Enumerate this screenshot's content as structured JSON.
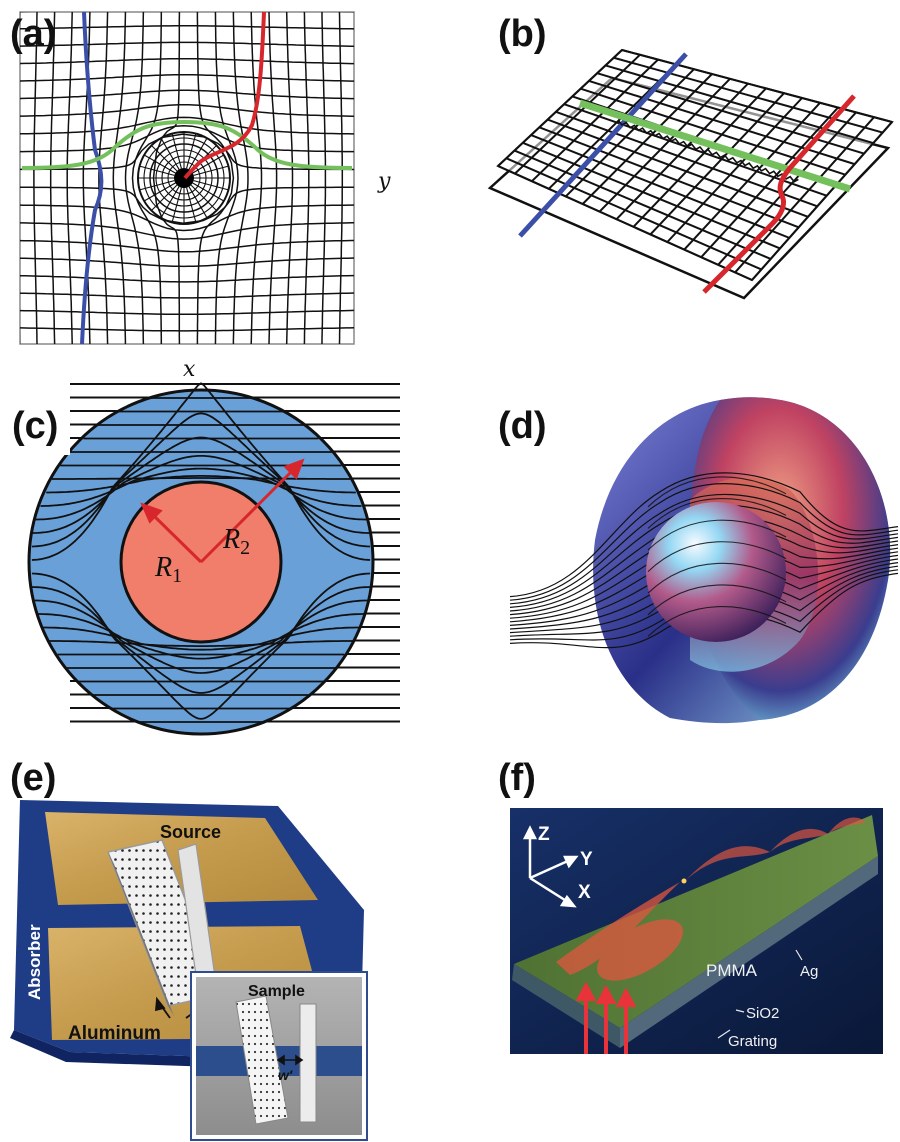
{
  "panels": [
    {
      "id": "a",
      "label": "(a)"
    },
    {
      "id": "b",
      "label": "(b)"
    },
    {
      "id": "c",
      "label": "(c)"
    },
    {
      "id": "d",
      "label": "(d)"
    },
    {
      "id": "e",
      "label": "(e)"
    },
    {
      "id": "f",
      "label": "(f)"
    }
  ],
  "panel_a": {
    "axis_x": "x",
    "axis_y": "y"
  },
  "panel_c": {
    "r1_main": "R",
    "r1_sub": "1",
    "r2_main": "R",
    "r2_sub": "2"
  },
  "panel_e": {
    "source": "Source",
    "absorber": "Absorber",
    "aluminum": "Aluminum",
    "sample": "Sample",
    "width": "w'"
  },
  "panel_f": {
    "axis_z": "Z",
    "axis_y": "Y",
    "axis_x": "X",
    "pmma": "PMMA",
    "ag": "Ag",
    "sio2": "SiO2",
    "grating": "Grating"
  },
  "colors": {
    "blue_line": "#3b4fa8",
    "red_line": "#d7262c",
    "green_line": "#74c05c",
    "cloak_blue": "#6aa0d8",
    "core_salmon": "#f07e6a",
    "gold": "#caa256",
    "frame_navy": "#1f3c86",
    "plate_navy": "#0d1f4c",
    "pmma_green": "#587d3a"
  }
}
